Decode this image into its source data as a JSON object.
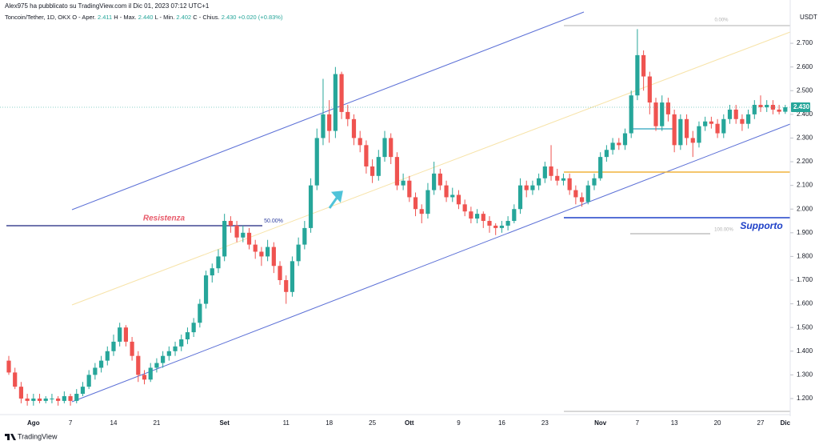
{
  "header": {
    "publisher": "Alex975 ha pubblicato su TradingView.com il Dic 01, 2023 07:12 UTC+1",
    "symbol": "Toncoin/Tether, 1D, OKX",
    "legend": [
      {
        "label": "O - Aper.",
        "value": "2.411"
      },
      {
        "label": "H - Max.",
        "value": "2.440"
      },
      {
        "label": "L - Min.",
        "value": "2.402"
      },
      {
        "label": "C - Chius.",
        "value": "2.430"
      }
    ],
    "change": "+0.020 (+0.83%)"
  },
  "chart_data": {
    "type": "candlestick",
    "currency": "USDT",
    "up_color": "#26a69a",
    "down_color": "#ef5350",
    "ylim": [
      1.139,
      2.822
    ],
    "yticks": [
      {
        "value": 1.2,
        "label": "1.200"
      },
      {
        "value": 1.3,
        "label": "1.300"
      },
      {
        "value": 1.4,
        "label": "1.400"
      },
      {
        "value": 1.5,
        "label": "1.500"
      },
      {
        "value": 1.6,
        "label": "1.600"
      },
      {
        "value": 1.7,
        "label": "1.700"
      },
      {
        "value": 1.8,
        "label": "1.800"
      },
      {
        "value": 1.9,
        "label": "1.900"
      },
      {
        "value": 2.0,
        "label": "2.000"
      },
      {
        "value": 2.1,
        "label": "2.100"
      },
      {
        "value": 2.2,
        "label": "2.200"
      },
      {
        "value": 2.3,
        "label": "2.300"
      },
      {
        "value": 2.4,
        "label": "2.400"
      },
      {
        "value": 2.5,
        "label": "2.500"
      },
      {
        "value": 2.6,
        "label": "2.600"
      },
      {
        "value": 2.7,
        "label": "2.700"
      }
    ],
    "last_price": {
      "value": 2.43,
      "label": "2.430"
    },
    "annotations": {
      "resistance": "Resistenza",
      "support": "Supporto",
      "fib_50": "50.00%",
      "fib_0": "0.00%",
      "fib_100": "100.00%"
    },
    "categories": [
      null,
      null,
      null,
      null,
      "Ago",
      null,
      null,
      null,
      null,
      null,
      "7",
      null,
      null,
      null,
      null,
      null,
      null,
      "14",
      null,
      null,
      null,
      null,
      null,
      null,
      "21",
      null,
      null,
      null,
      null,
      null,
      null,
      null,
      null,
      null,
      null,
      "Set",
      null,
      null,
      null,
      null,
      null,
      null,
      null,
      null,
      null,
      "11",
      null,
      null,
      null,
      null,
      null,
      null,
      "18",
      null,
      null,
      null,
      null,
      null,
      null,
      "25",
      null,
      null,
      null,
      null,
      null,
      "Ott",
      null,
      null,
      null,
      null,
      null,
      null,
      null,
      "9",
      null,
      null,
      null,
      null,
      null,
      null,
      "16",
      null,
      null,
      null,
      null,
      null,
      null,
      "23",
      null,
      null,
      null,
      null,
      null,
      null,
      null,
      null,
      "Nov",
      null,
      null,
      null,
      null,
      null,
      "7",
      null,
      null,
      null,
      null,
      null,
      "13",
      null,
      null,
      null,
      null,
      null,
      null,
      "20",
      null,
      null,
      null,
      null,
      null,
      null,
      "27",
      null,
      null,
      null,
      "Dic"
    ],
    "ohlc": [
      [
        1.36,
        1.38,
        1.3,
        1.31
      ],
      [
        1.31,
        1.33,
        1.24,
        1.25
      ],
      [
        1.25,
        1.27,
        1.18,
        1.2
      ],
      [
        1.2,
        1.22,
        1.17,
        1.19
      ],
      [
        1.19,
        1.22,
        1.17,
        1.2
      ],
      [
        1.2,
        1.22,
        1.18,
        1.19
      ],
      [
        1.19,
        1.21,
        1.18,
        1.2
      ],
      [
        1.2,
        1.22,
        1.18,
        1.2
      ],
      [
        1.2,
        1.21,
        1.17,
        1.19
      ],
      [
        1.19,
        1.23,
        1.18,
        1.21
      ],
      [
        1.21,
        1.22,
        1.17,
        1.19
      ],
      [
        1.19,
        1.24,
        1.18,
        1.22
      ],
      [
        1.22,
        1.27,
        1.21,
        1.25
      ],
      [
        1.25,
        1.32,
        1.24,
        1.3
      ],
      [
        1.3,
        1.35,
        1.28,
        1.33
      ],
      [
        1.33,
        1.38,
        1.31,
        1.36
      ],
      [
        1.36,
        1.42,
        1.34,
        1.4
      ],
      [
        1.4,
        1.47,
        1.38,
        1.44
      ],
      [
        1.44,
        1.52,
        1.42,
        1.5
      ],
      [
        1.5,
        1.51,
        1.42,
        1.44
      ],
      [
        1.44,
        1.46,
        1.36,
        1.38
      ],
      [
        1.38,
        1.4,
        1.27,
        1.3
      ],
      [
        1.3,
        1.32,
        1.26,
        1.28
      ],
      [
        1.28,
        1.35,
        1.27,
        1.33
      ],
      [
        1.33,
        1.37,
        1.31,
        1.35
      ],
      [
        1.35,
        1.4,
        1.33,
        1.38
      ],
      [
        1.38,
        1.42,
        1.36,
        1.4
      ],
      [
        1.4,
        1.44,
        1.38,
        1.42
      ],
      [
        1.42,
        1.47,
        1.4,
        1.45
      ],
      [
        1.45,
        1.5,
        1.43,
        1.48
      ],
      [
        1.48,
        1.54,
        1.46,
        1.52
      ],
      [
        1.52,
        1.62,
        1.5,
        1.6
      ],
      [
        1.6,
        1.74,
        1.58,
        1.72
      ],
      [
        1.72,
        1.77,
        1.69,
        1.75
      ],
      [
        1.75,
        1.83,
        1.73,
        1.8
      ],
      [
        1.8,
        1.98,
        1.78,
        1.95
      ],
      [
        1.95,
        1.97,
        1.9,
        1.93
      ],
      [
        1.93,
        1.95,
        1.86,
        1.88
      ],
      [
        1.88,
        1.93,
        1.86,
        1.9
      ],
      [
        1.9,
        1.92,
        1.83,
        1.85
      ],
      [
        1.85,
        1.87,
        1.79,
        1.82
      ],
      [
        1.82,
        1.84,
        1.76,
        1.8
      ],
      [
        1.8,
        1.87,
        1.78,
        1.84
      ],
      [
        1.84,
        1.86,
        1.73,
        1.76
      ],
      [
        1.76,
        1.78,
        1.68,
        1.7
      ],
      [
        1.7,
        1.72,
        1.6,
        1.65
      ],
      [
        1.65,
        1.8,
        1.63,
        1.78
      ],
      [
        1.78,
        1.88,
        1.76,
        1.85
      ],
      [
        1.85,
        1.95,
        1.83,
        1.92
      ],
      [
        1.92,
        2.13,
        1.9,
        2.1
      ],
      [
        2.1,
        2.34,
        2.08,
        2.3
      ],
      [
        2.3,
        2.55,
        2.27,
        2.4
      ],
      [
        2.4,
        2.46,
        2.28,
        2.33
      ],
      [
        2.33,
        2.6,
        2.3,
        2.57
      ],
      [
        2.57,
        2.58,
        2.38,
        2.41
      ],
      [
        2.41,
        2.44,
        2.35,
        2.38
      ],
      [
        2.38,
        2.4,
        2.27,
        2.3
      ],
      [
        2.3,
        2.33,
        2.24,
        2.27
      ],
      [
        2.27,
        2.29,
        2.15,
        2.18
      ],
      [
        2.18,
        2.21,
        2.11,
        2.14
      ],
      [
        2.14,
        2.25,
        2.12,
        2.22
      ],
      [
        2.22,
        2.33,
        2.2,
        2.3
      ],
      [
        2.3,
        2.32,
        2.19,
        2.22
      ],
      [
        2.22,
        2.24,
        2.08,
        2.1
      ],
      [
        2.1,
        2.15,
        2.08,
        2.12
      ],
      [
        2.12,
        2.14,
        2.03,
        2.05
      ],
      [
        2.05,
        2.07,
        1.97,
        2.0
      ],
      [
        2.0,
        2.02,
        1.94,
        1.98
      ],
      [
        1.98,
        2.11,
        1.96,
        2.08
      ],
      [
        2.08,
        2.2,
        2.06,
        2.15
      ],
      [
        2.15,
        2.17,
        2.08,
        2.1
      ],
      [
        2.1,
        2.12,
        2.03,
        2.05
      ],
      [
        2.05,
        2.09,
        2.03,
        2.06
      ],
      [
        2.06,
        2.08,
        2.0,
        2.02
      ],
      [
        2.02,
        2.04,
        1.97,
        1.99
      ],
      [
        1.99,
        2.01,
        1.94,
        1.96
      ],
      [
        1.96,
        2.0,
        1.94,
        1.98
      ],
      [
        1.98,
        1.99,
        1.92,
        1.95
      ],
      [
        1.95,
        1.97,
        1.9,
        1.93
      ],
      [
        1.93,
        1.94,
        1.89,
        1.92
      ],
      [
        1.92,
        1.95,
        1.9,
        1.93
      ],
      [
        1.93,
        1.97,
        1.91,
        1.95
      ],
      [
        1.95,
        2.02,
        1.94,
        2.0
      ],
      [
        2.0,
        2.13,
        1.98,
        2.1
      ],
      [
        2.1,
        2.12,
        2.05,
        2.08
      ],
      [
        2.08,
        2.12,
        2.06,
        2.1
      ],
      [
        2.1,
        2.15,
        2.08,
        2.13
      ],
      [
        2.13,
        2.2,
        2.11,
        2.18
      ],
      [
        2.18,
        2.27,
        2.12,
        2.14
      ],
      [
        2.14,
        2.17,
        2.1,
        2.12
      ],
      [
        2.12,
        2.15,
        2.1,
        2.13
      ],
      [
        2.13,
        2.15,
        2.06,
        2.08
      ],
      [
        2.08,
        2.1,
        2.02,
        2.05
      ],
      [
        2.05,
        2.07,
        2.01,
        2.03
      ],
      [
        2.03,
        2.12,
        2.02,
        2.1
      ],
      [
        2.1,
        2.15,
        2.08,
        2.13
      ],
      [
        2.13,
        2.24,
        2.12,
        2.22
      ],
      [
        2.22,
        2.27,
        2.2,
        2.25
      ],
      [
        2.25,
        2.3,
        2.23,
        2.28
      ],
      [
        2.28,
        2.3,
        2.25,
        2.27
      ],
      [
        2.27,
        2.34,
        2.25,
        2.32
      ],
      [
        2.32,
        2.5,
        2.3,
        2.48
      ],
      [
        2.48,
        2.76,
        2.46,
        2.65
      ],
      [
        2.65,
        2.67,
        2.5,
        2.56
      ],
      [
        2.56,
        2.58,
        2.4,
        2.45
      ],
      [
        2.45,
        2.47,
        2.33,
        2.35
      ],
      [
        2.35,
        2.48,
        2.33,
        2.45
      ],
      [
        2.45,
        2.47,
        2.37,
        2.4
      ],
      [
        2.4,
        2.42,
        2.24,
        2.27
      ],
      [
        2.27,
        2.4,
        2.25,
        2.38
      ],
      [
        2.38,
        2.4,
        2.27,
        2.3
      ],
      [
        2.3,
        2.33,
        2.22,
        2.28
      ],
      [
        2.28,
        2.37,
        2.26,
        2.35
      ],
      [
        2.35,
        2.39,
        2.33,
        2.37
      ],
      [
        2.37,
        2.39,
        2.34,
        2.36
      ],
      [
        2.36,
        2.38,
        2.3,
        2.32
      ],
      [
        2.32,
        2.4,
        2.3,
        2.38
      ],
      [
        2.38,
        2.44,
        2.36,
        2.42
      ],
      [
        2.42,
        2.44,
        2.36,
        2.38
      ],
      [
        2.38,
        2.4,
        2.33,
        2.36
      ],
      [
        2.36,
        2.42,
        2.34,
        2.4
      ],
      [
        2.4,
        2.46,
        2.38,
        2.44
      ],
      [
        2.44,
        2.48,
        2.41,
        2.43
      ],
      [
        2.43,
        2.46,
        2.41,
        2.44
      ],
      [
        2.44,
        2.46,
        2.4,
        2.42
      ],
      [
        2.42,
        2.44,
        2.4,
        2.411
      ],
      [
        2.411,
        2.44,
        2.402,
        2.43
      ]
    ]
  },
  "footer": {
    "brand": "TradingView"
  }
}
